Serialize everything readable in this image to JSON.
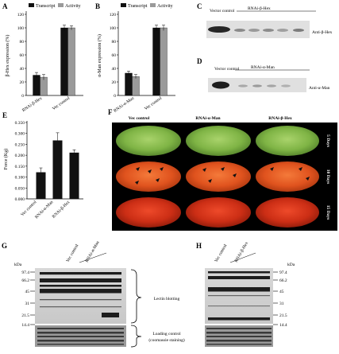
{
  "panels": {
    "A": {
      "label": "A",
      "legend": [
        "Transcript",
        "Activity"
      ],
      "ylabel": "β-Hex expression (%)",
      "yticks": [
        "0",
        "20",
        "40",
        "60",
        "80",
        "100",
        "120"
      ],
      "categories": [
        "RNAi-β-Hex",
        "Vec control"
      ]
    },
    "B": {
      "label": "B",
      "legend": [
        "Transcript",
        "Activity"
      ],
      "ylabel": "α-Man expression (%)",
      "yticks": [
        "0",
        "20",
        "40",
        "60",
        "80",
        "100",
        "120"
      ],
      "categories": [
        "RNAi-α-Man",
        "Vec control"
      ]
    },
    "C": {
      "label": "C",
      "lane1": "Vector control",
      "lane2": "RNAi-β-Hex",
      "antibody": "Anti-β-Hex"
    },
    "D": {
      "label": "D",
      "lane1": "Vector control",
      "lane2": "RNAi-α-Man",
      "antibody": "Anti-α-Man"
    },
    "E": {
      "label": "E",
      "ylabel": "Force (Kg)",
      "yticks": [
        "0.000",
        "0.050",
        "0.100",
        "0.150",
        "0.200",
        "0.250",
        "0.300",
        "0.350"
      ],
      "categories": [
        "Vec control",
        "RNAi-α-Man",
        "RNAi-β-Hex"
      ]
    },
    "F": {
      "label": "F",
      "columns": [
        "Vec control",
        "RNAi-α-Man",
        "RNAi-β-Hex"
      ],
      "rows": [
        "5 Days",
        "10 Days",
        "15 Days"
      ]
    },
    "G": {
      "label": "G",
      "kda_label": "kDa",
      "markers": [
        "97.4",
        "66.2",
        "45",
        "31",
        "21.5",
        "14.4"
      ],
      "lanes": [
        "Vec control",
        "RNAi-α-Man"
      ]
    },
    "H": {
      "label": "H",
      "kda_label": "kDa",
      "markers": [
        "97.4",
        "66.2",
        "45",
        "31",
        "21.5",
        "14.4"
      ],
      "lanes": [
        "Vec control",
        "RNAi-β-Hex"
      ]
    }
  },
  "annotations": {
    "lectin": "Lectin blotting",
    "loading_line1": "Loading control",
    "loading_line2": "(coomassie staining)"
  },
  "chart_data": [
    {
      "type": "bar",
      "panel": "A",
      "categories": [
        "RNAi-β-Hex",
        "Vec control"
      ],
      "series": [
        {
          "name": "Transcript",
          "values": [
            30,
            100
          ],
          "errors": [
            4,
            4
          ]
        },
        {
          "name": "Activity",
          "values": [
            27,
            100
          ],
          "errors": [
            4,
            3
          ]
        }
      ],
      "ylabel": "β-Hex expression (%)",
      "ylim": [
        0,
        120
      ],
      "legend": "top-left"
    },
    {
      "type": "bar",
      "panel": "B",
      "categories": [
        "RNAi-α-Man",
        "Vec control"
      ],
      "series": [
        {
          "name": "Transcript",
          "values": [
            33,
            100
          ],
          "errors": [
            3,
            4
          ]
        },
        {
          "name": "Activity",
          "values": [
            28,
            100
          ],
          "errors": [
            3,
            4
          ]
        }
      ],
      "ylabel": "α-Man expression (%)",
      "ylim": [
        0,
        120
      ],
      "legend": "top-left"
    },
    {
      "type": "bar",
      "panel": "E",
      "categories": [
        "Vec control",
        "RNAi-α-Man",
        "RNAi-β-Hex"
      ],
      "values": [
        0.122,
        0.268,
        0.212
      ],
      "errors": [
        0.02,
        0.035,
        0.013
      ],
      "ylabel": "Force (Kg)",
      "ylim": [
        0,
        0.35
      ]
    }
  ]
}
